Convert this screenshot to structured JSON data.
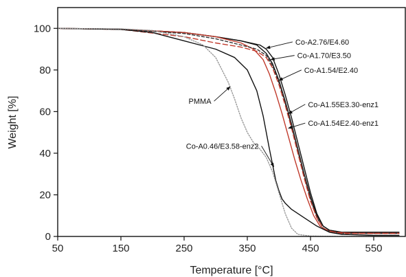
{
  "chart_data": {
    "type": "line",
    "xlabel": "Temperature [°C]",
    "ylabel": "Weight [%]",
    "xlim": [
      50,
      600
    ],
    "ylim": [
      0,
      110
    ],
    "xticks": [
      50,
      150,
      250,
      350,
      450,
      550
    ],
    "yticks": [
      0,
      20,
      40,
      60,
      80,
      100
    ],
    "grid": false,
    "legend": "none",
    "series": [
      {
        "name": "Co-A2.76/E4.60",
        "color": "#111111",
        "dash": "",
        "x": [
          50,
          150,
          250,
          300,
          340,
          370,
          380,
          390,
          400,
          410,
          420,
          430,
          440,
          450,
          460,
          470,
          480,
          500,
          550,
          590
        ],
        "y": [
          100,
          99.6,
          98,
          96,
          94,
          92,
          90,
          86,
          78,
          68,
          57,
          45,
          33,
          21,
          11,
          5,
          3,
          2,
          2,
          2
        ]
      },
      {
        "name": "Co-A1.70/E3.50",
        "color": "#111111",
        "dash": "",
        "x": [
          50,
          150,
          250,
          300,
          340,
          365,
          380,
          390,
          400,
          410,
          420,
          430,
          440,
          450,
          460,
          470,
          480,
          500,
          550,
          590
        ],
        "y": [
          100,
          99.6,
          98,
          96,
          94,
          92,
          88,
          83,
          75,
          65,
          54,
          42,
          30,
          19,
          10,
          5,
          3,
          2,
          2,
          2
        ]
      },
      {
        "name": "Co-A1.54/E2.40",
        "color": "#c0392b",
        "dash": "",
        "x": [
          50,
          150,
          250,
          300,
          340,
          360,
          375,
          385,
          395,
          405,
          415,
          425,
          435,
          445,
          455,
          465,
          475,
          490,
          520,
          590
        ],
        "y": [
          100,
          99.6,
          98,
          96,
          93,
          90,
          85,
          78,
          69,
          59,
          48,
          37,
          27,
          18,
          10,
          5,
          3,
          2,
          1.5,
          1.5
        ]
      },
      {
        "name": "Co-A1.55E3.30-enz1",
        "color": "#333333",
        "dash": "4,3",
        "x": [
          50,
          150,
          250,
          300,
          340,
          365,
          380,
          390,
          400,
          410,
          420,
          430,
          440,
          450,
          460,
          470,
          480,
          500,
          550,
          590
        ],
        "y": [
          100,
          99.6,
          97.5,
          95,
          92,
          90,
          87,
          82,
          74,
          64,
          53,
          41,
          29,
          18,
          9,
          4,
          2.5,
          1.5,
          1.5,
          1.5
        ]
      },
      {
        "name": "Co-A1.54E2.40-enz1",
        "color": "#c0392b",
        "dash": "7,4",
        "x": [
          50,
          150,
          250,
          300,
          340,
          365,
          380,
          390,
          400,
          410,
          420,
          430,
          440,
          450,
          460,
          470,
          480,
          500,
          550,
          590
        ],
        "y": [
          100,
          99.5,
          96,
          93,
          91,
          89,
          86,
          81,
          73,
          63,
          52,
          40,
          28,
          17,
          9,
          4,
          2.5,
          1.5,
          1.5,
          1.5
        ]
      },
      {
        "name": "Co-A0.46/E3.58-enz2",
        "color": "#111111",
        "dash": "",
        "x": [
          50,
          150,
          200,
          225,
          250,
          275,
          300,
          330,
          350,
          365,
          375,
          385,
          395,
          400,
          405,
          410,
          420,
          440,
          460,
          480,
          500,
          550,
          590
        ],
        "y": [
          100,
          99.5,
          98,
          96,
          94,
          92,
          90,
          86,
          80,
          70,
          58,
          42,
          27,
          22,
          18,
          16,
          13,
          9,
          5,
          2,
          1,
          0.5,
          0.5
        ]
      },
      {
        "name": "PMMA",
        "color": "#999999",
        "dash": "1.5,2",
        "x": [
          50,
          150,
          200,
          250,
          280,
          300,
          320,
          330,
          340,
          350,
          360,
          370,
          380,
          390,
          400,
          410,
          420,
          430,
          450,
          500,
          590
        ],
        "y": [
          100,
          99.8,
          99,
          96,
          92,
          86,
          74,
          66,
          57,
          50,
          45,
          42,
          38,
          31,
          21,
          11,
          4,
          1,
          0.2,
          0,
          0
        ]
      }
    ],
    "annotations": [
      {
        "text": "Co-A2.76/E4.60",
        "series": "Co-A2.76/E4.60",
        "x": 380,
        "y": 90.5,
        "tx": 426,
        "ty": 93.5,
        "anchor": "start"
      },
      {
        "text": "Co-A1.70/E3.50",
        "series": "Co-A1.70/E3.50",
        "x": 387,
        "y": 85,
        "tx": 429,
        "ty": 87,
        "anchor": "start"
      },
      {
        "text": "Co-A1.54/E2.40",
        "series": "Co-A1.54/E2.40",
        "x": 400,
        "y": 75,
        "tx": 440,
        "ty": 80,
        "anchor": "start"
      },
      {
        "text": "Co-A1.55E3.30-enz1",
        "series": "Co-A1.55E3.30-enz1",
        "x": 415,
        "y": 59,
        "tx": 446,
        "ty": 63.5,
        "anchor": "start"
      },
      {
        "text": "Co-A1.54E2.40-enz1",
        "series": "Co-A1.54E2.40-enz1",
        "x": 415,
        "y": 52,
        "tx": 446,
        "ty": 54.5,
        "anchor": "start"
      },
      {
        "text": "PMMA",
        "series": "PMMA",
        "x": 323,
        "y": 72,
        "tx": 293,
        "ty": 65,
        "anchor": "end"
      },
      {
        "text": "Co-A0.46/E3.58-enz2",
        "series": "Co-A0.46/E3.58-enz2",
        "x": 392,
        "y": 33.5,
        "tx": 368,
        "ty": 43.5,
        "anchor": "end"
      }
    ]
  }
}
